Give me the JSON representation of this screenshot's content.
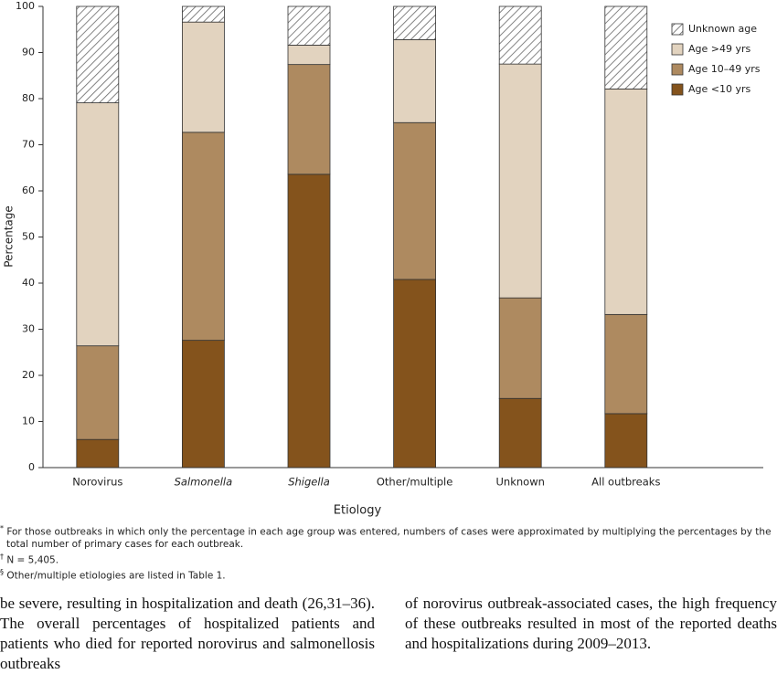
{
  "chart_data": {
    "type": "stacked_bar",
    "y_label": "Percentage",
    "x_label": "Etiology",
    "categories": [
      "Norovirus",
      "Salmonella",
      "Shigella",
      "Other/multiple",
      "Unknown",
      "All outbreaks"
    ],
    "italic": [
      false,
      true,
      true,
      false,
      false,
      false
    ],
    "series": [
      {
        "name": "Age <10 yrs",
        "color": "#84531c",
        "values": [
          6.1,
          27.6,
          63.6,
          40.8,
          15.0,
          11.7
        ]
      },
      {
        "name": "Age 10–49 yrs",
        "color": "#ae8a60",
        "values": [
          20.3,
          45.1,
          23.8,
          34.0,
          21.8,
          21.5
        ]
      },
      {
        "name": "Age >49 yrs",
        "color": "#e2d3bf",
        "values": [
          52.7,
          23.9,
          4.2,
          18.0,
          50.7,
          48.9
        ]
      },
      {
        "name": "Unknown age",
        "color": "#ffffff",
        "pattern": "hatch",
        "values": [
          20.9,
          3.4,
          8.4,
          7.2,
          12.5,
          17.9
        ]
      }
    ],
    "ylim": [
      0,
      100
    ],
    "yticks": [
      0,
      10,
      20,
      30,
      40,
      50,
      60,
      70,
      80,
      90,
      100
    ],
    "legend": "top-right"
  },
  "notes": [
    {
      "mark": "*",
      "text": "For those outbreaks in which only the percentage in each age group was entered, numbers of cases were approximated by multiplying the percentages by the total number of primary cases for each outbreak."
    },
    {
      "mark": "†",
      "text": "N = 5,405."
    },
    {
      "mark": "§",
      "text": "Other/multiple etiologies are listed in Table 1."
    }
  ],
  "body": {
    "left": "be severe, resulting in hospitalization and death (26,31–36). The overall percentages of hospitalized patients and patients who died for reported norovirus and salmonellosis outbreaks",
    "right": "of norovirus outbreak-associated cases, the high frequency of these outbreaks resulted in most of the reported deaths and hospitalizations during 2009–2013."
  }
}
